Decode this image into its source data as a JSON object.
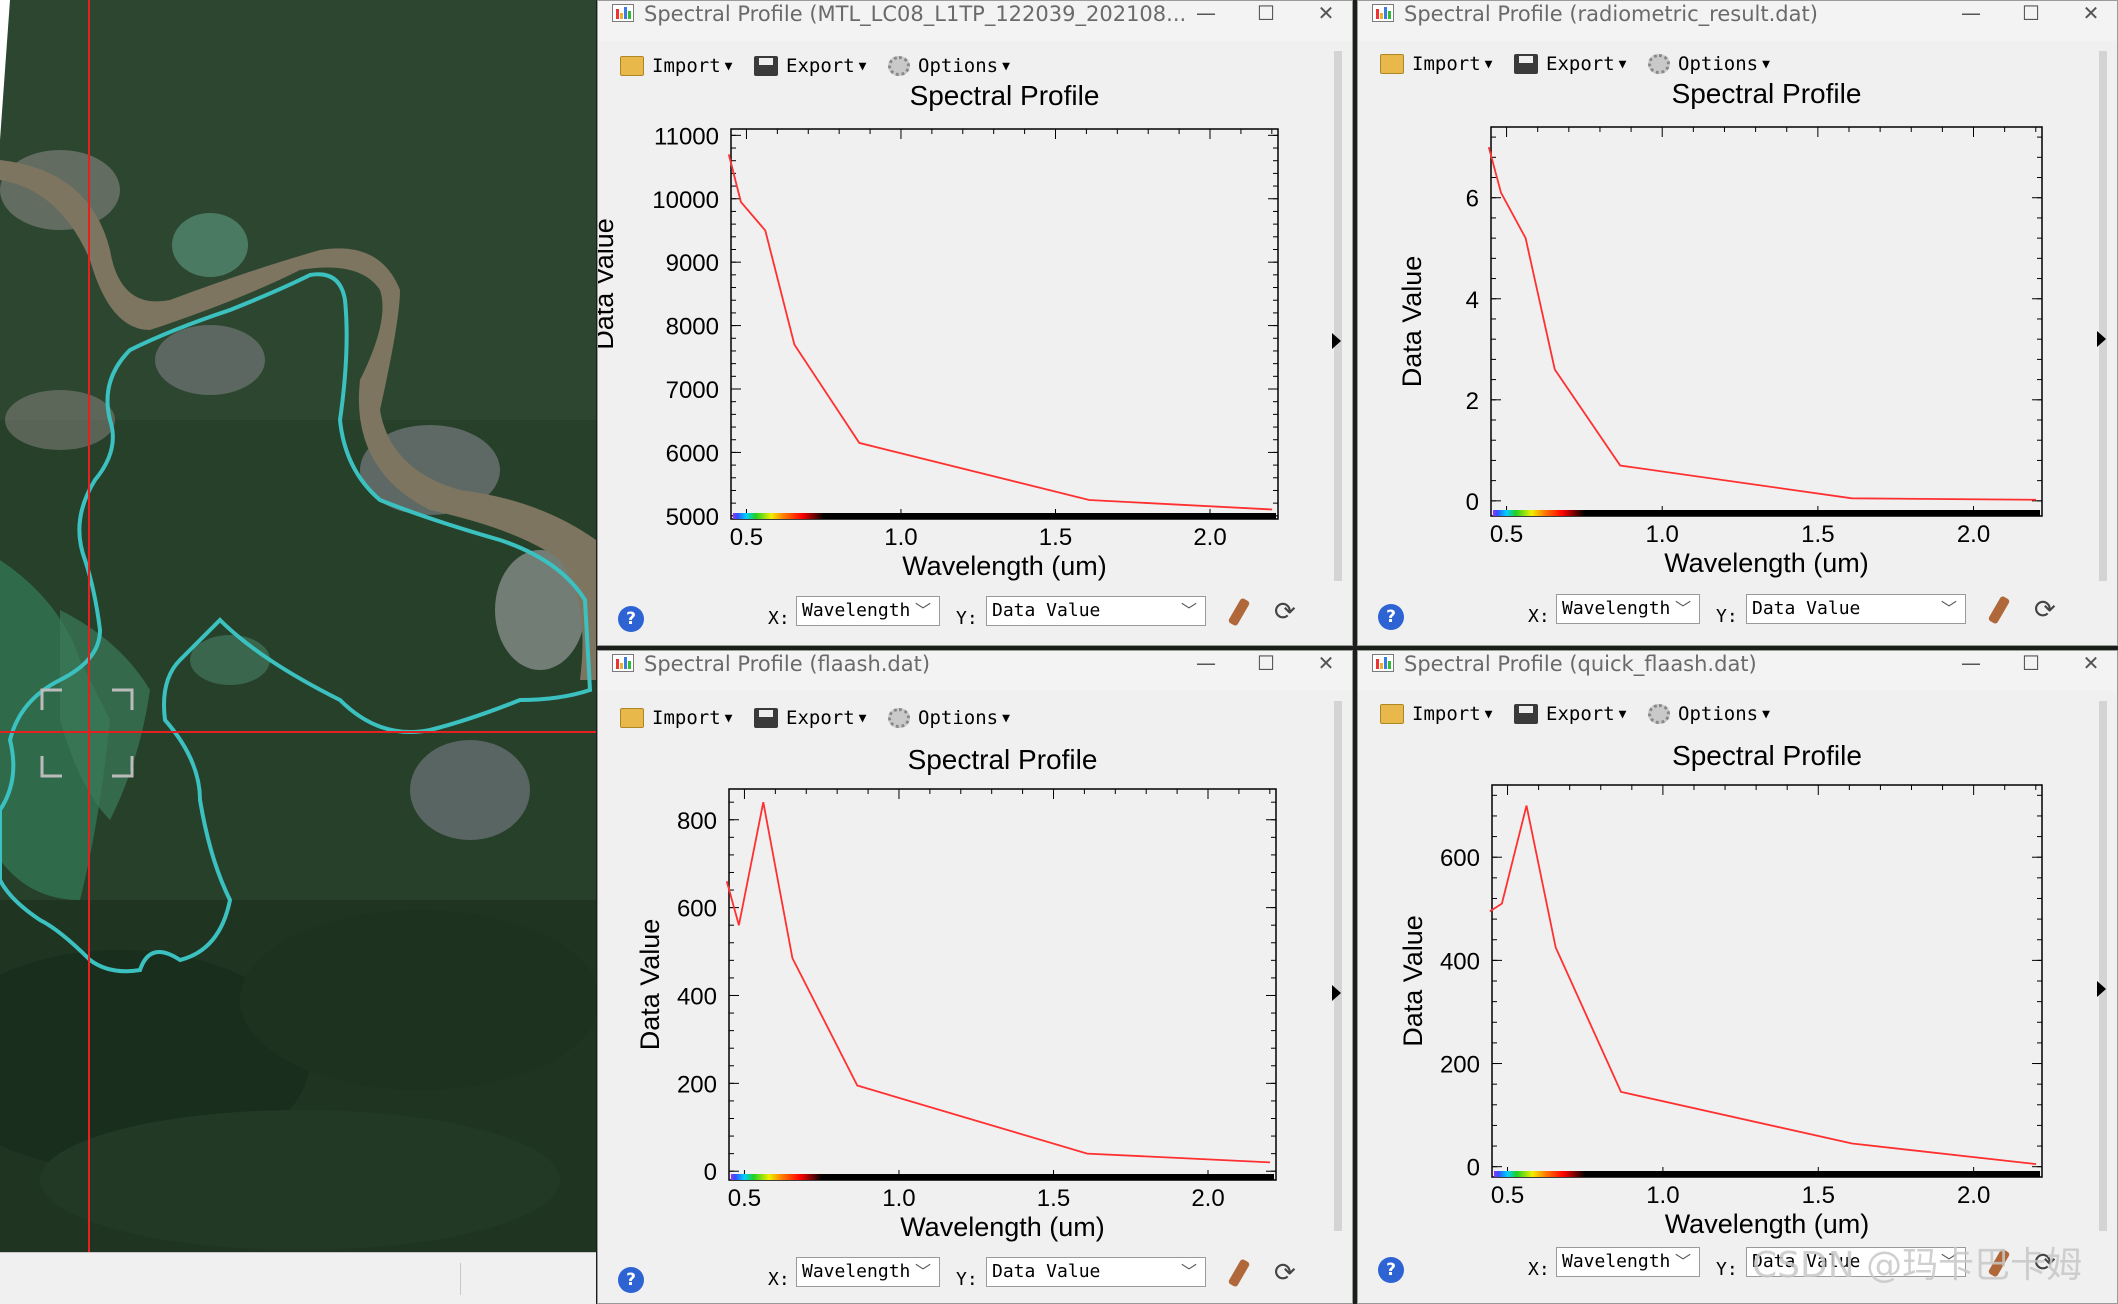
{
  "windows": [
    {
      "title": "Spectral Profile (MTL_LC08_L1TP_122039_202108...",
      "toolbar": {
        "import": "Import",
        "export": "Export",
        "options": "Options"
      },
      "chart_title": "Spectral Profile",
      "xlabel": "Wavelength (um)",
      "ylabel": "Data Value",
      "x_select": "Wavelength",
      "y_select": "Data Value",
      "x_label": "X:",
      "y_label": "Y:",
      "help": "?",
      "minimize": "—",
      "maximize": "☐",
      "close": "✕"
    },
    {
      "title": "Spectral Profile (radiometric_result.dat)",
      "toolbar": {
        "import": "Import",
        "export": "Export",
        "options": "Options"
      },
      "chart_title": "Spectral Profile",
      "xlabel": "Wavelength (um)",
      "ylabel": "Data Value",
      "x_select": "Wavelength",
      "y_select": "Data Value",
      "x_label": "X:",
      "y_label": "Y:",
      "help": "?",
      "minimize": "—",
      "maximize": "☐",
      "close": "✕"
    },
    {
      "title": "Spectral Profile (flaash.dat)",
      "toolbar": {
        "import": "Import",
        "export": "Export",
        "options": "Options"
      },
      "chart_title": "Spectral Profile",
      "xlabel": "Wavelength (um)",
      "ylabel": "Data Value",
      "x_select": "Wavelength",
      "y_select": "Data Value",
      "x_label": "X:",
      "y_label": "Y:",
      "help": "?",
      "minimize": "—",
      "maximize": "☐",
      "close": "✕"
    },
    {
      "title": "Spectral Profile (quick_flaash.dat)",
      "toolbar": {
        "import": "Import",
        "export": "Export",
        "options": "Options"
      },
      "chart_title": "Spectral Profile",
      "xlabel": "Wavelength (um)",
      "ylabel": "Data Value",
      "x_select": "Wavelength",
      "y_select": "Data Value",
      "x_label": "X:",
      "y_label": "Y:",
      "help": "?",
      "minimize": "—",
      "maximize": "☐",
      "close": "✕"
    }
  ],
  "chart_data": [
    {
      "type": "line",
      "title": "Spectral Profile",
      "xlabel": "Wavelength (um)",
      "ylabel": "Data Value",
      "xlim": [
        0.45,
        2.22
      ],
      "ylim": [
        4950,
        11100
      ],
      "xticks": [
        "0.5",
        "1.0",
        "1.5",
        "2.0"
      ],
      "yticks": [
        "5000",
        "6000",
        "7000",
        "8000",
        "9000",
        "10000",
        "11000"
      ],
      "line_color": "#ff3030",
      "series": [
        {
          "x": [
            0.443,
            0.482,
            0.561,
            0.655,
            0.865,
            1.609,
            2.201
          ],
          "y": [
            10700,
            9950,
            9500,
            7700,
            6150,
            5250,
            5100
          ]
        }
      ]
    },
    {
      "type": "line",
      "title": "Spectral Profile",
      "xlabel": "Wavelength (um)",
      "ylabel": "Data Value",
      "xlim": [
        0.45,
        2.22
      ],
      "ylim": [
        -0.3,
        7.4
      ],
      "xticks": [
        "0.5",
        "1.0",
        "1.5",
        "2.0"
      ],
      "yticks": [
        "0",
        "2",
        "4",
        "6"
      ],
      "line_color": "#ff3030",
      "series": [
        {
          "x": [
            0.443,
            0.482,
            0.561,
            0.655,
            0.865,
            1.609,
            2.201
          ],
          "y": [
            7.0,
            6.1,
            5.2,
            2.6,
            0.7,
            0.05,
            0.02
          ]
        }
      ]
    },
    {
      "type": "line",
      "title": "Spectral Profile",
      "xlabel": "Wavelength (um)",
      "ylabel": "Data Value",
      "xlim": [
        0.45,
        2.22
      ],
      "ylim": [
        -20,
        870
      ],
      "xticks": [
        "0.5",
        "1.0",
        "1.5",
        "2.0"
      ],
      "yticks": [
        "0",
        "200",
        "400",
        "600",
        "800"
      ],
      "line_color": "#ff3030",
      "series": [
        {
          "x": [
            0.443,
            0.482,
            0.561,
            0.655,
            0.865,
            1.609,
            2.201
          ],
          "y": [
            660,
            560,
            840,
            485,
            195,
            40,
            20
          ]
        }
      ]
    },
    {
      "type": "line",
      "title": "Spectral Profile",
      "xlabel": "Wavelength (um)",
      "ylabel": "Data Value",
      "xlim": [
        0.45,
        2.22
      ],
      "ylim": [
        -20,
        740
      ],
      "xticks": [
        "0.5",
        "1.0",
        "1.5",
        "2.0"
      ],
      "yticks": [
        "0",
        "200",
        "400",
        "600"
      ],
      "line_color": "#ff3030",
      "series": [
        {
          "x": [
            0.443,
            0.482,
            0.561,
            0.655,
            0.865,
            1.609,
            2.201
          ],
          "y": [
            495,
            510,
            700,
            425,
            145,
            45,
            5
          ]
        }
      ]
    }
  ],
  "watermark": "CSDN @玛卡巴卡姆"
}
